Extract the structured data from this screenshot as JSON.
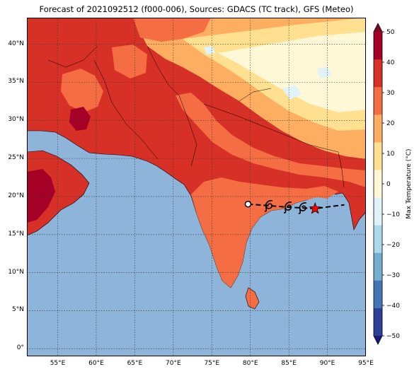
{
  "title": "Forecast of 2021092512 (f000-006), Sources: GDACS (TC track), GFS (Meteo)",
  "colors": {
    "ocean": "#8fb4d9",
    "hot_dark": "#b01c20",
    "hot_red": "#d73027",
    "orange": "#f06a3a",
    "light_orange": "#fc9e5a",
    "pale": "#fee3a8",
    "cream": "#fff6dc",
    "pale_blue": "#e0f3f8",
    "track": "#000000",
    "current_position": "#ff0000"
  },
  "map": {
    "lon_range": [
      51,
      95
    ],
    "lat_range": [
      -1,
      43.5
    ],
    "gridlines": true,
    "lon_ticks": [
      "55°E",
      "60°E",
      "65°E",
      "70°E",
      "75°E",
      "80°E",
      "85°E",
      "90°E",
      "95°E"
    ],
    "lat_ticks": [
      "0°",
      "5°N",
      "10°N",
      "15°N",
      "20°N",
      "25°N",
      "30°N",
      "35°N",
      "40°N"
    ]
  },
  "colorbar": {
    "label": "Max Temperature (°C)",
    "ticks": [
      "50",
      "40",
      "30",
      "20",
      "10",
      "0",
      "−10",
      "−20",
      "−30",
      "−40",
      "−50"
    ],
    "bands": [
      "#7a0a1f",
      "#a50026",
      "#d73027",
      "#f46d43",
      "#fdae61",
      "#fee090",
      "#fff8d6",
      "#e0f3f8",
      "#abd9e9",
      "#74add1",
      "#4575b4",
      "#2c3f99",
      "#1a1a7a"
    ]
  },
  "track": {
    "points": [
      {
        "lon": 79.7,
        "lat": 19.0,
        "symbol": "open-circle"
      },
      {
        "lon": 82.4,
        "lat": 18.8,
        "symbol": "cyclone"
      },
      {
        "lon": 84.9,
        "lat": 18.6,
        "symbol": "cyclone"
      },
      {
        "lon": 86.8,
        "lat": 18.5,
        "symbol": "cyclone"
      },
      {
        "lon": 88.4,
        "lat": 18.4,
        "symbol": "star"
      },
      {
        "lon": 90.5,
        "lat": 18.7,
        "symbol": "none"
      },
      {
        "lon": 92.2,
        "lat": 18.9,
        "symbol": "none"
      }
    ]
  }
}
